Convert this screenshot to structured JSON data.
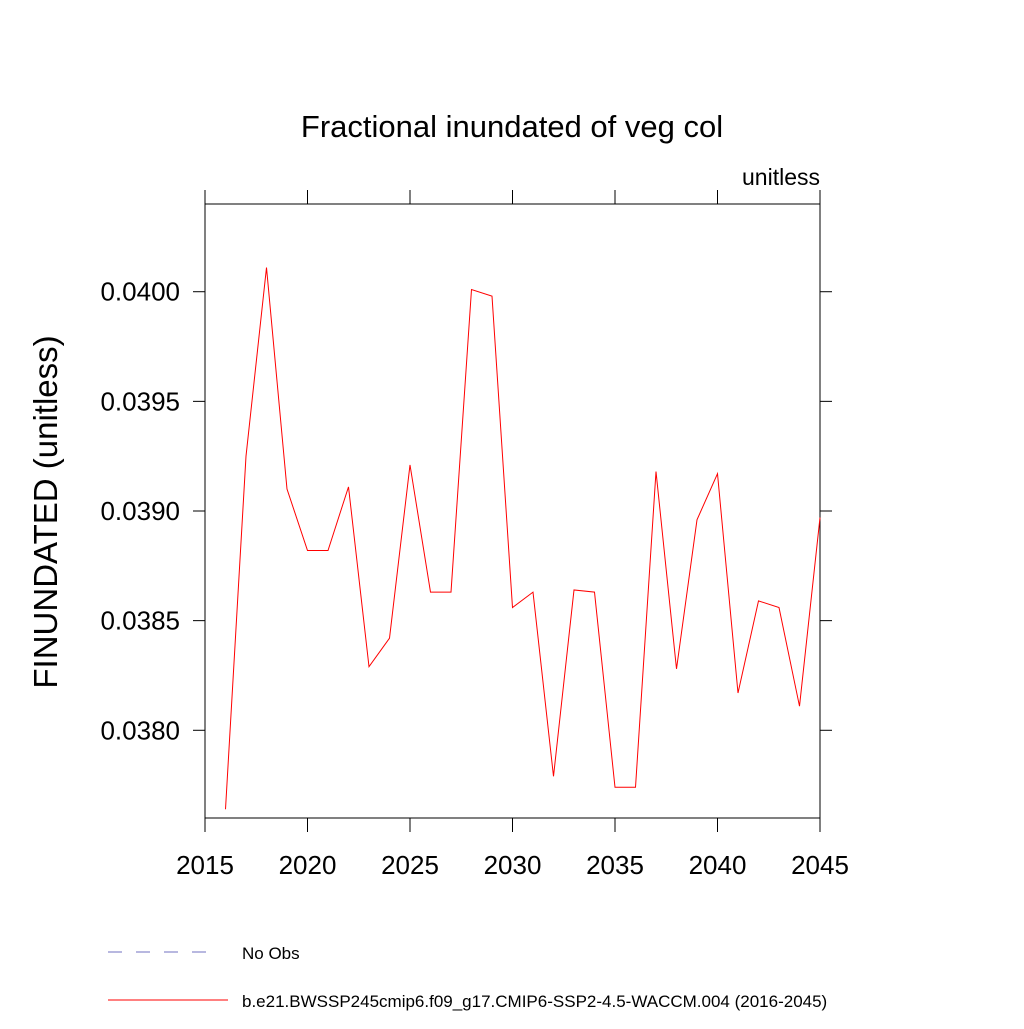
{
  "chart_data": {
    "type": "line",
    "title": "Fractional inundated of veg col",
    "subtitle": "unitless",
    "y_label": "FINUNDATED  (unitless)",
    "x": [
      2016,
      2017,
      2018,
      2019,
      2020,
      2021,
      2022,
      2023,
      2024,
      2025,
      2026,
      2027,
      2028,
      2029,
      2030,
      2031,
      2032,
      2033,
      2034,
      2035,
      2036,
      2037,
      2038,
      2039,
      2040,
      2041,
      2042,
      2043,
      2044,
      2045
    ],
    "series": [
      {
        "name": "b.e21.BWSSP245cmip6.f09_g17.CMIP6-SSP2-4.5-WACCM.004 (2016-2045)",
        "color": "#ff0000",
        "values": [
          0.03764,
          0.03925,
          0.04011,
          0.0391,
          0.03882,
          0.03882,
          0.03911,
          0.03829,
          0.03842,
          0.03921,
          0.03863,
          0.03863,
          0.04001,
          0.03998,
          0.03856,
          0.03863,
          0.03779,
          0.03864,
          0.03863,
          0.03774,
          0.03774,
          0.03918,
          0.03828,
          0.03896,
          0.03917,
          0.03817,
          0.03859,
          0.03856,
          0.03811,
          0.03897
        ]
      }
    ],
    "reference": {
      "name": "No Obs",
      "color": "#7070c0",
      "dashed": true
    },
    "xlim": [
      2015,
      2045
    ],
    "xticks": [
      2015,
      2020,
      2025,
      2030,
      2035,
      2040,
      2045
    ],
    "ylim": [
      0.0376,
      0.0404
    ],
    "yticks": [
      {
        "value": 0.038,
        "label": "0.0380"
      },
      {
        "value": 0.0385,
        "label": "0.0385"
      },
      {
        "value": 0.039,
        "label": "0.0390"
      },
      {
        "value": 0.0395,
        "label": "0.0395"
      },
      {
        "value": 0.04,
        "label": "0.0400"
      }
    ]
  }
}
